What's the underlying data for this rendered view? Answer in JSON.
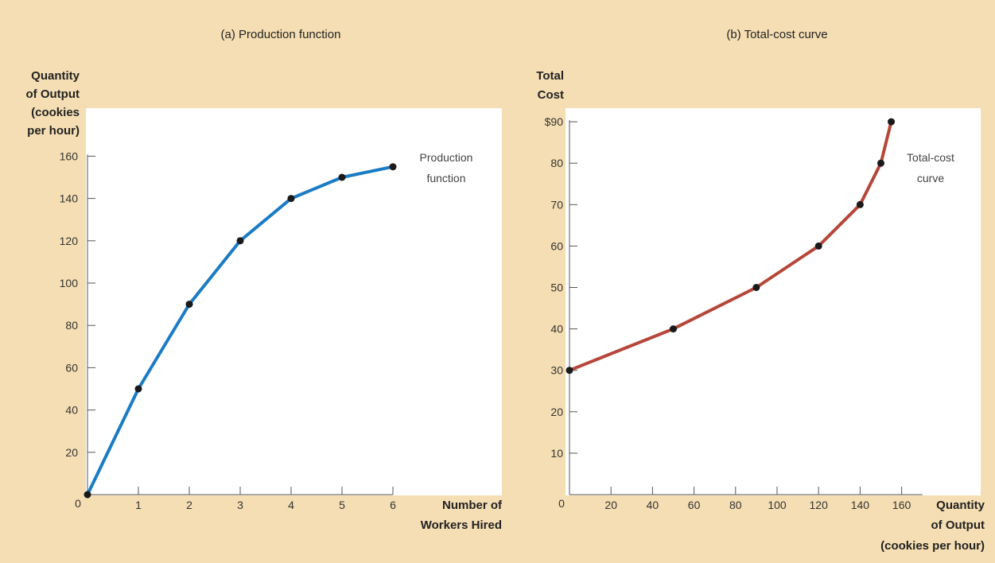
{
  "colors": {
    "background": "#f5deb3",
    "plot_bg": "#ffffff",
    "axis": "#555555",
    "point": "#1a1a1a"
  },
  "chart_data": [
    {
      "type": "line",
      "title": "(a) Production function",
      "xlabel": [
        "Number of",
        "Workers Hired"
      ],
      "ylabel": [
        "Quantity",
        "of Output",
        "(cookies",
        "per hour)"
      ],
      "xlim": [
        0,
        6
      ],
      "ylim": [
        0,
        160
      ],
      "xticks": [
        1,
        2,
        3,
        4,
        5,
        6
      ],
      "yticks": [
        20,
        40,
        60,
        80,
        100,
        120,
        140,
        160
      ],
      "origin_label": "0",
      "series": [
        {
          "name": "Production function",
          "color": "#1a7cc4",
          "x": [
            0,
            1,
            2,
            3,
            4,
            5,
            6
          ],
          "y": [
            0,
            50,
            90,
            120,
            140,
            150,
            155
          ]
        }
      ],
      "annotation": [
        "Production",
        "function"
      ]
    },
    {
      "type": "line",
      "title": "(b) Total-cost curve",
      "xlabel": [
        "Quantity",
        "of Output",
        "(cookies per hour)"
      ],
      "ylabel": [
        "Total",
        "Cost"
      ],
      "xlim": [
        0,
        170
      ],
      "ylim": [
        0,
        90
      ],
      "xticks": [
        20,
        40,
        60,
        80,
        100,
        120,
        140,
        160
      ],
      "yticks": [
        10,
        20,
        30,
        40,
        50,
        60,
        70,
        80,
        90
      ],
      "ytick_labels": [
        "10",
        "20",
        "30",
        "40",
        "50",
        "60",
        "70",
        "80",
        "$90"
      ],
      "origin_label": "0",
      "series": [
        {
          "name": "Total-cost curve",
          "color": "#b5473a",
          "x": [
            0,
            50,
            90,
            120,
            140,
            150,
            155
          ],
          "y": [
            30,
            40,
            50,
            60,
            70,
            80,
            90
          ]
        }
      ],
      "annotation": [
        "Total-cost",
        "curve"
      ]
    }
  ]
}
